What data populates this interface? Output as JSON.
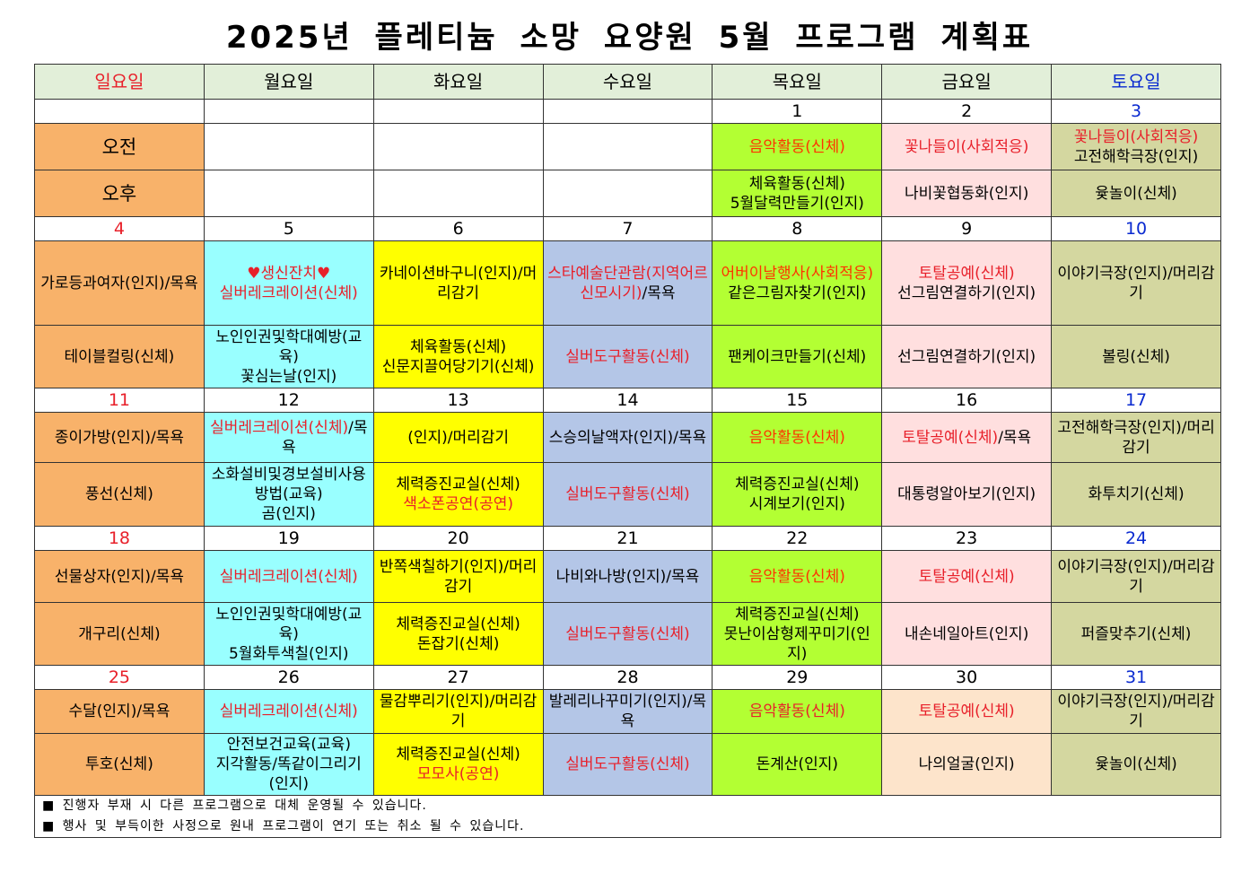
{
  "title": "2025년 플레티늄 소망 요양원 5월 프로그램 계획표",
  "colors": {
    "header_bg": "#e2efd9",
    "sun": "#f8b26a",
    "mon": "#99ffff",
    "tue": "#ffff00",
    "wed": "#b4c6e7",
    "thu": "#b3ff33",
    "fri": "#ffdfdf",
    "fri_last": "#fde4cb",
    "sat": "#d4d7a0",
    "red": "#e8202a",
    "orange": "#ff3300",
    "blue": "#0a2ad0"
  },
  "weekdays": [
    "일요일",
    "월요일",
    "화요일",
    "수요일",
    "목요일",
    "금요일",
    "토요일"
  ],
  "labels": {
    "am": "오전",
    "pm": "오후"
  },
  "weeks": [
    {
      "dates": [
        "",
        "",
        "",
        "",
        "1",
        "2",
        "3"
      ],
      "am": [
        [],
        [],
        [],
        [],
        [
          {
            "text": "음악활동(신체)",
            "color": "orange"
          }
        ],
        [
          {
            "text": "꽃나들이(사회적응)",
            "color": "red"
          }
        ],
        [
          {
            "text": "꽃나들이(사회적응)",
            "color": "red"
          },
          {
            "text": "고전해학극장(인지)"
          }
        ]
      ],
      "pm": [
        [],
        [],
        [],
        [],
        [
          {
            "text": "체육활동(신체)"
          },
          {
            "text": "5월달력만들기(인지)"
          }
        ],
        [
          {
            "text": "나비꽃협동화(인지)"
          }
        ],
        [
          {
            "text": "윷놀이(신체)"
          }
        ]
      ]
    },
    {
      "dates": [
        "4",
        "5",
        "6",
        "7",
        "8",
        "9",
        "10"
      ],
      "am": [
        [
          {
            "text": "가로등과여자(인지)/목욕"
          }
        ],
        [
          {
            "text": "♥생신잔치♥",
            "color": "red"
          },
          {
            "text": "실버레크레이션(신체)",
            "color": "red"
          }
        ],
        [
          {
            "text": "카네이션바구니(인지)/머리감기"
          }
        ],
        [
          {
            "text": "스타예술단관람(지역어르신모시기)",
            "color": "red",
            "inline": true
          },
          {
            "text": "/목욕",
            "inline": true
          }
        ],
        [
          {
            "text": "어버이날행사(사회적응)",
            "color": "orange"
          },
          {
            "text": "같은그림자찾기(인지)"
          }
        ],
        [
          {
            "text": "토탈공예(신체)",
            "color": "red"
          },
          {
            "text": "선그림연결하기(인지)"
          }
        ],
        [
          {
            "text": "이야기극장(인지)/머리감기"
          }
        ]
      ],
      "pm": [
        [
          {
            "text": "테이블컬링(신체)"
          }
        ],
        [
          {
            "text": "노인인권및학대예방(교육)"
          },
          {
            "text": "꽃심는날(인지)"
          }
        ],
        [
          {
            "text": "체육활동(신체)"
          },
          {
            "text": "신문지끌어당기기(신체)"
          }
        ],
        [
          {
            "text": "실버도구활동(신체)",
            "color": "red"
          }
        ],
        [
          {
            "text": "팬케이크만들기(신체)"
          }
        ],
        [
          {
            "text": "선그림연결하기(인지)"
          }
        ],
        [
          {
            "text": "볼링(신체)"
          }
        ]
      ]
    },
    {
      "dates": [
        "11",
        "12",
        "13",
        "14",
        "15",
        "16",
        "17"
      ],
      "am": [
        [
          {
            "text": "종이가방(인지)/목욕"
          }
        ],
        [
          {
            "text": "실버레크레이션(신체)",
            "color": "red",
            "inline": true
          },
          {
            "text": "/목욕",
            "inline": true
          }
        ],
        [
          {
            "text": "(인지)/머리감기"
          }
        ],
        [
          {
            "text": "스승의날액자(인지)/목욕"
          }
        ],
        [
          {
            "text": "음악활동(신체)",
            "color": "orange"
          }
        ],
        [
          {
            "text": "토탈공예(신체)",
            "color": "red",
            "inline": true
          },
          {
            "text": "/목욕",
            "inline": true
          }
        ],
        [
          {
            "text": "고전해학극장(인지)/머리감기"
          }
        ]
      ],
      "pm": [
        [
          {
            "text": "풍선(신체)"
          }
        ],
        [
          {
            "text": "소화설비및경보설비사용방법(교육)"
          },
          {
            "text": "곰(인지)"
          }
        ],
        [
          {
            "text": "체력증진교실(신체)"
          },
          {
            "text": "색소폰공연(공연)",
            "color": "red"
          }
        ],
        [
          {
            "text": "실버도구활동(신체)",
            "color": "red"
          }
        ],
        [
          {
            "text": "체력증진교실(신체)"
          },
          {
            "text": "시계보기(인지)"
          }
        ],
        [
          {
            "text": "대통령알아보기(인지)"
          }
        ],
        [
          {
            "text": "화투치기(신체)"
          }
        ]
      ]
    },
    {
      "dates": [
        "18",
        "19",
        "20",
        "21",
        "22",
        "23",
        "24"
      ],
      "am": [
        [
          {
            "text": "선물상자(인지)/목욕"
          }
        ],
        [
          {
            "text": "실버레크레이션(신체)",
            "color": "red"
          }
        ],
        [
          {
            "text": "반쪽색칠하기(인지)/머리감기"
          }
        ],
        [
          {
            "text": "나비와나방(인지)/목욕"
          }
        ],
        [
          {
            "text": "음악활동(신체)",
            "color": "orange"
          }
        ],
        [
          {
            "text": "토탈공예(신체)",
            "color": "red"
          }
        ],
        [
          {
            "text": "이야기극장(인지)/머리감기"
          }
        ]
      ],
      "pm": [
        [
          {
            "text": "개구리(신체)"
          }
        ],
        [
          {
            "text": "노인인권및학대예방(교육)"
          },
          {
            "text": "5월화투색칠(인지)"
          }
        ],
        [
          {
            "text": "체력증진교실(신체)"
          },
          {
            "text": "돈잡기(신체)"
          }
        ],
        [
          {
            "text": "실버도구활동(신체)",
            "color": "red"
          }
        ],
        [
          {
            "text": "체력증진교실(신체)"
          },
          {
            "text": "못난이삼형제꾸미기(인지)"
          }
        ],
        [
          {
            "text": "내손네일아트(인지)"
          }
        ],
        [
          {
            "text": "퍼즐맞추기(신체)"
          }
        ]
      ]
    },
    {
      "dates": [
        "25",
        "26",
        "27",
        "28",
        "29",
        "30",
        "31"
      ],
      "am": [
        [
          {
            "text": "수달(인지)/목욕"
          }
        ],
        [
          {
            "text": "실버레크레이션(신체)",
            "color": "red"
          }
        ],
        [
          {
            "text": "물감뿌리기(인지)/머리감기"
          }
        ],
        [
          {
            "text": "발레리나꾸미기(인지)/목욕"
          }
        ],
        [
          {
            "text": "음악활동(신체)",
            "color": "red"
          }
        ],
        [
          {
            "text": "토탈공예(신체)",
            "color": "red"
          }
        ],
        [
          {
            "text": "이야기극장(인지)/머리감기"
          }
        ]
      ],
      "pm": [
        [
          {
            "text": "투호(신체)"
          }
        ],
        [
          {
            "text": "안전보건교육(교육)"
          },
          {
            "text": "지각활동/똑같이그리기(인지)"
          }
        ],
        [
          {
            "text": "체력증진교실(신체)"
          },
          {
            "text": "모모사(공연)",
            "color": "red"
          }
        ],
        [
          {
            "text": "실버도구활동(신체)",
            "color": "red"
          }
        ],
        [
          {
            "text": "돈계산(인지)"
          }
        ],
        [
          {
            "text": "나의얼굴(인지)"
          }
        ],
        [
          {
            "text": "윷놀이(신체)"
          }
        ]
      ]
    }
  ],
  "notes": [
    "■ 진행자 부재 시 다른 프로그램으로 대체 운영될 수 있습니다.",
    "■ 행사 및 부득이한 사정으로 원내 프로그램이 연기 또는 취소 될 수 있습니다."
  ]
}
